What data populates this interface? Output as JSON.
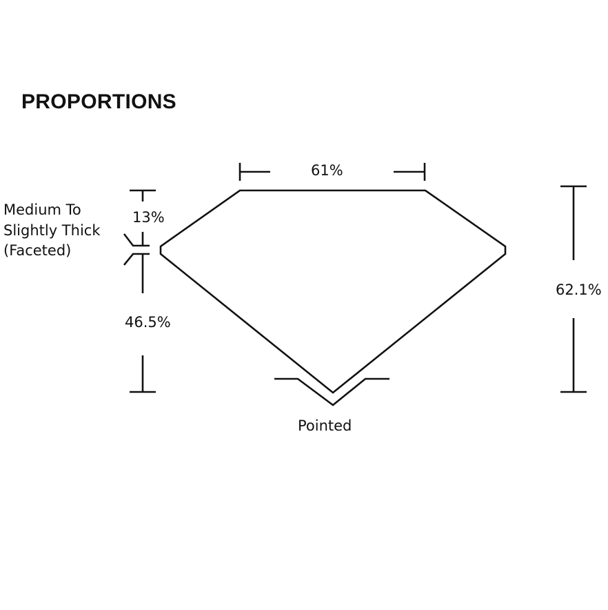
{
  "title": "PROPORTIONS",
  "labels": {
    "table": "61%",
    "crown": "13%",
    "girdle_line1": "Medium To",
    "girdle_line2": "Slightly Thick",
    "girdle_line3": "(Faceted)",
    "pavilion": "46.5%",
    "depth": "62.1%",
    "culet": "Pointed"
  }
}
